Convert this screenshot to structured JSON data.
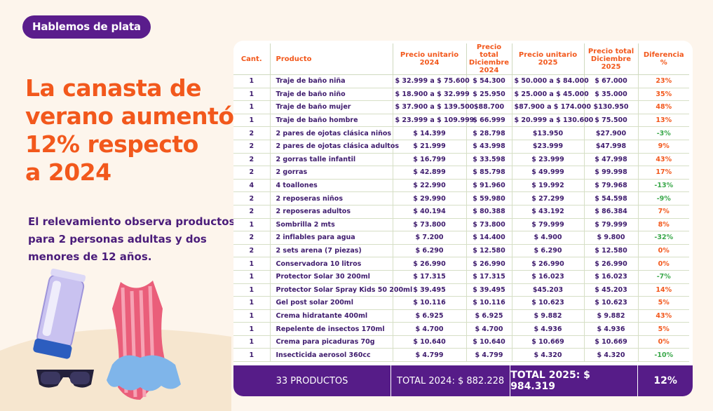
{
  "header": {
    "badge": "Hablemos de plata",
    "headline": [
      "La canasta de",
      "verano aumentó",
      "12% respecto",
      "a 2024"
    ],
    "description": [
      "El relevamiento observa productos",
      "para 2 personas adultas y dos",
      "menores de 12 años."
    ]
  },
  "table": {
    "columns": [
      "Cant.",
      "Producto",
      "Precio unitario 2024",
      "Precio total Diciembre 2024",
      "Precio unitario 2025",
      "Precio total Diciembre 2025",
      "Diferencia %"
    ],
    "rows": [
      [
        "1",
        "Traje de baño niña",
        "$ 32.999 a $ 75.600",
        "$ 54.300",
        "$ 50.000 a $ 84.000",
        "$ 67.000",
        "23%"
      ],
      [
        "1",
        "Traje de baño niño",
        "$ 18.900 a $ 32.999",
        "$ 25.950",
        "$ 25.000 a $ 45.000",
        "$ 35.000",
        "35%"
      ],
      [
        "1",
        "Traje de baño mujer",
        "$ 37.900 a $ 139.500",
        "$88.700",
        "$87.900 a $ 174.000",
        "$130.950",
        "48%"
      ],
      [
        "1",
        "Traje de baño hombre",
        "$ 23.999 a $ 109.999",
        "$ 66.999",
        "$ 20.999 a $ 130.600",
        "$ 75.500",
        "13%"
      ],
      [
        "2",
        "2 pares de ojotas clásica niños",
        "$ 14.399",
        "$ 28.798",
        "$13.950",
        "$27.900",
        "-3%"
      ],
      [
        "2",
        "2 pares de ojotas clásica adultos",
        "$ 21.999",
        "$ 43.998",
        "$23.999",
        "$47.998",
        "9%"
      ],
      [
        "2",
        "2 gorras talle infantil",
        "$ 16.799",
        "$ 33.598",
        "$ 23.999",
        "$ 47.998",
        "43%"
      ],
      [
        "2",
        "2 gorras",
        "$ 42.899",
        "$ 85.798",
        "$ 49.999",
        "$ 99.998",
        "17%"
      ],
      [
        "4",
        "4 toallones",
        "$ 22.990",
        "$ 91.960",
        "$ 19.992",
        "$ 79.968",
        "-13%"
      ],
      [
        "2",
        "2 reposeras niños",
        "$ 29.990",
        "$ 59.980",
        "$ 27.299",
        "$ 54.598",
        "-9%"
      ],
      [
        "2",
        "2 reposeras adultos",
        "$ 40.194",
        "$ 80.388",
        "$ 43.192",
        "$ 86.384",
        "7%"
      ],
      [
        "1",
        "Sombrilla 2 mts",
        "$ 73.800",
        "$ 73.800",
        "$ 79.999",
        "$ 79.999",
        "8%"
      ],
      [
        "2",
        "2 inflables para agua",
        "$ 7.200",
        "$ 14.400",
        "$ 4.900",
        "$ 9.800",
        "-32%"
      ],
      [
        "2",
        "2 sets arena (7 piezas)",
        "$ 6.290",
        "$ 12.580",
        "$ 6.290",
        "$ 12.580",
        "0%"
      ],
      [
        "1",
        "Conservadora 10 litros",
        "$ 26.990",
        "$ 26.990",
        "$ 26.990",
        "$ 26.990",
        "0%"
      ],
      [
        "1",
        "Protector Solar 30 200ml",
        "$ 17.315",
        "$ 17.315",
        "$ 16.023",
        "$ 16.023",
        "-7%"
      ],
      [
        "1",
        "Protector Solar Spray Kids 50 200ml",
        "$ 39.495",
        "$ 39.495",
        "$45.203",
        "$ 45.203",
        "14%"
      ],
      [
        "1",
        "Gel post solar 200ml",
        "$ 10.116",
        "$ 10.116",
        "$ 10.623",
        "$ 10.623",
        "5%"
      ],
      [
        "1",
        "Crema hidratante 400ml",
        "$ 6.925",
        "$ 6.925",
        "$ 9.882",
        "$ 9.882",
        "43%"
      ],
      [
        "1",
        "Repelente de insectos 170ml",
        "$ 4.700",
        "$ 4.700",
        "$ 4.936",
        "$ 4.936",
        "5%"
      ],
      [
        "1",
        "Crema para picaduras 70g",
        "$ 10.640",
        "$ 10.640",
        "$ 10.669",
        "$ 10.669",
        "0%"
      ],
      [
        "1",
        "Insecticida aerosol 360cc",
        "$ 4.799",
        "$ 4.799",
        "$ 4.320",
        "$ 4.320",
        "-10%"
      ]
    ],
    "footer": [
      "33 PRODUCTOS",
      "TOTAL 2024: $  882.228",
      "TOTAL 2025: $ 984.319",
      "12%"
    ]
  }
}
